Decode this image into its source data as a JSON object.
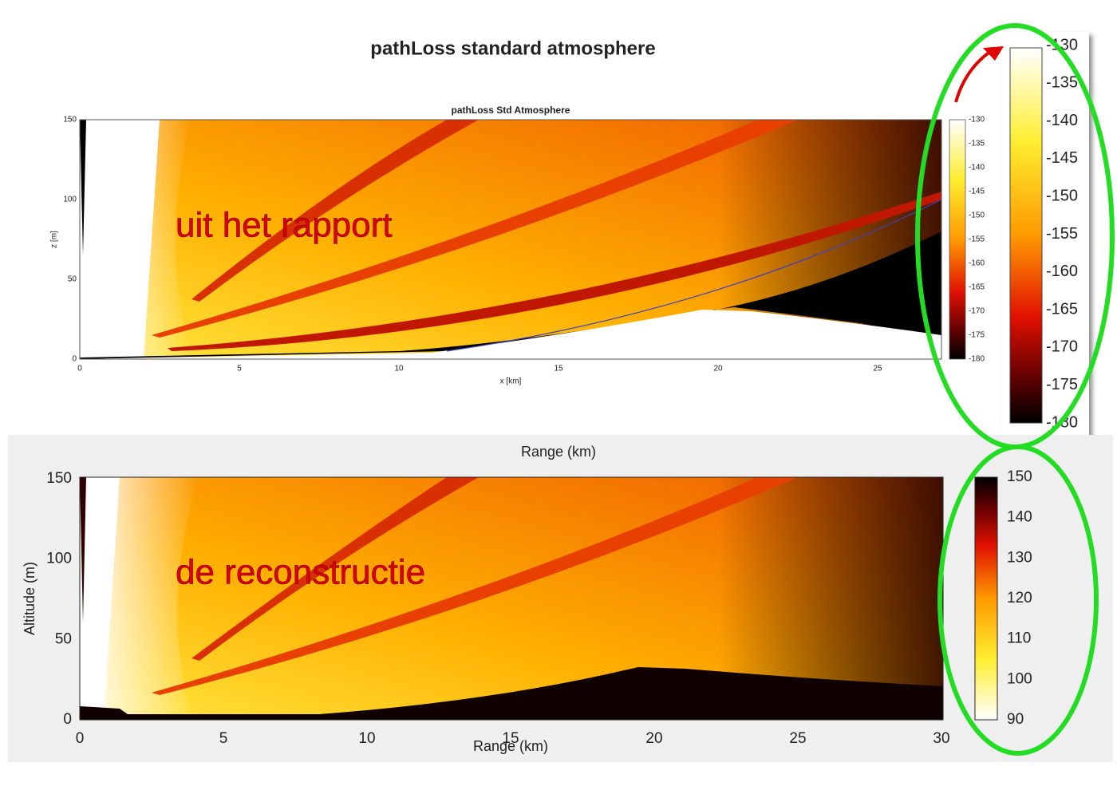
{
  "top_figure": {
    "title": "pathLoss standard atmosphere",
    "plot_title": "pathLoss Std Atmosphere",
    "x_label": "x [km]",
    "y_label": "z [m]",
    "x_ticks": [
      "0",
      "5",
      "10",
      "15",
      "20",
      "25"
    ],
    "y_ticks": [
      "0",
      "50",
      "100",
      "150"
    ],
    "colorbar_ticks": [
      "-130",
      "-135",
      "-140",
      "-145",
      "-150",
      "-155",
      "-160",
      "-165",
      "-170",
      "-175",
      "-180"
    ],
    "annotation": "uit het rapport"
  },
  "zoomed_colorbar": {
    "ticks": [
      "-130",
      "-135",
      "-140",
      "-145",
      "-150",
      "-155",
      "-160",
      "-165",
      "-170",
      "-175",
      "-180"
    ]
  },
  "bottom_figure": {
    "top_label": "Range (km)",
    "x_label": "Range (km)",
    "y_label": "Altitude (m)",
    "x_ticks": [
      "0",
      "5",
      "10",
      "15",
      "20",
      "25",
      "30"
    ],
    "y_ticks": [
      "0",
      "50",
      "100",
      "150"
    ],
    "colorbar_ticks": [
      "150",
      "140",
      "130",
      "120",
      "110",
      "100",
      "90"
    ],
    "annotation": "de reconstructie"
  }
}
